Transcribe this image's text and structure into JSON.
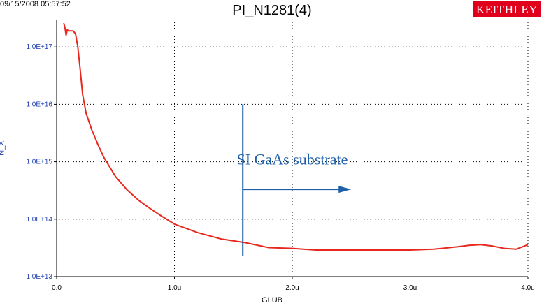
{
  "header": {
    "timestamp": "09/15/2008 05:57:52",
    "logo": "KEITHLEY"
  },
  "colors": {
    "curve": "#e8281e",
    "annotation": "#1f5fa8",
    "ytick": "#1f3fb0",
    "logo_bg": "#e0001b"
  },
  "chart_data": {
    "type": "line",
    "title": "PI_N1281(4)",
    "xlabel": "GLUB",
    "ylabel": "N_X",
    "xlim": [
      0,
      4.0
    ],
    "ylim": [
      10000000000000.0,
      3e+17
    ],
    "yscale": "log",
    "grid": "dotted",
    "xticks": [
      {
        "value": 0,
        "label": "0.0"
      },
      {
        "value": 1.0,
        "label": "1.0u"
      },
      {
        "value": 2.0,
        "label": "2.0u"
      },
      {
        "value": 3.0,
        "label": "3.0u"
      },
      {
        "value": 4.0,
        "label": "4.0u"
      }
    ],
    "yticks": [
      {
        "value": 10000000000000.0,
        "label": "1.0E+13"
      },
      {
        "value": 100000000000000.0,
        "label": "1.0E+14"
      },
      {
        "value": 1000000000000000.0,
        "label": "1.0E+15"
      },
      {
        "value": 1e+16,
        "label": "1.0E+16"
      },
      {
        "value": 1e+17,
        "label": "1.0E+17"
      }
    ],
    "series": [
      {
        "x": [
          0.06,
          0.07,
          0.08,
          0.09,
          0.1,
          0.12,
          0.14,
          0.16,
          0.18,
          0.2,
          0.22,
          0.25,
          0.3,
          0.35,
          0.4,
          0.5,
          0.6,
          0.7,
          0.8,
          0.9,
          1.0,
          1.2,
          1.4,
          1.6,
          1.8,
          2.0,
          2.2,
          2.4,
          2.6,
          2.8,
          3.0,
          3.2,
          3.4,
          3.5,
          3.6,
          3.7,
          3.8,
          3.9,
          4.0
        ],
        "y": [
          2.6e+17,
          2.2e+17,
          1.6e+17,
          2e+17,
          1.9e+17,
          1.9e+17,
          1.9e+17,
          1.7e+17,
          1e+17,
          4e+16,
          1.5e+16,
          7000000000000000.0,
          3500000000000000.0,
          2000000000000000.0,
          1200000000000000.0,
          550000000000000.0,
          320000000000000.0,
          210000000000000.0,
          150000000000000.0,
          110000000000000.0,
          82000000000000.0,
          58000000000000.0,
          45000000000000.0,
          39000000000000.0,
          32000000000000.0,
          31000000000000.0,
          29000000000000.0,
          29000000000000.0,
          29000000000000.0,
          29000000000000.0,
          29000000000000.0,
          30000000000000.0,
          33000000000000.0,
          35000000000000.0,
          36000000000000.0,
          34000000000000.0,
          31000000000000.0,
          30000000000000.0,
          36000000000000.0
        ]
      }
    ],
    "annotations": [
      {
        "text": "SI GaAs substrate",
        "boundary_x": 1.58,
        "arrow_to_x": 2.5,
        "arrow_y": 330000000000000.0,
        "line_y": [
          23000000000000.0,
          1e+16
        ],
        "text_x": 2.0,
        "text_y": 1120000000000000.0
      }
    ]
  }
}
